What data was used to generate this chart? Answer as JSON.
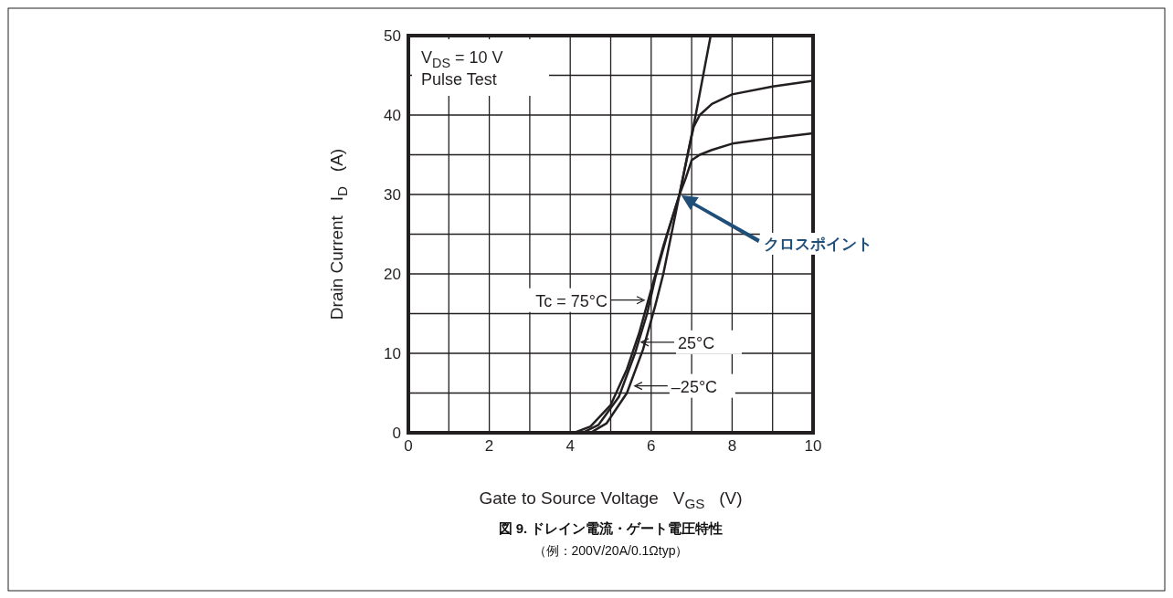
{
  "chart_data": {
    "type": "line",
    "title": "図 9. ドレイン電流・ゲート電圧特性",
    "subtitle": "（例：200V/20A/0.1Ωtyp）",
    "xlabel": "Gate to Source Voltage   V$_{GS}$   (V)",
    "ylabel": "Drain Current   I$_{D}$   (A)",
    "xlim": [
      0,
      10
    ],
    "ylim": [
      0,
      50
    ],
    "xticks": [
      0,
      {
        "value": 1,
        "label": null
      },
      2,
      {
        "value": 3,
        "label": null
      },
      4,
      {
        "value": 5,
        "label": null
      },
      6,
      {
        "value": 7,
        "label": null
      },
      8,
      {
        "value": 9,
        "label": null
      },
      10
    ],
    "yticks": [
      0,
      {
        "value": 5,
        "label": null
      },
      10,
      {
        "value": 15,
        "label": null
      },
      20,
      {
        "value": 25,
        "label": null
      },
      30,
      {
        "value": 35,
        "label": null
      },
      40,
      {
        "value": 45,
        "label": null
      },
      50
    ],
    "grid": true,
    "series": [
      {
        "color": "#231f20",
        "x": [
          4.1,
          4.5,
          5,
          5.4,
          5.7,
          6,
          6.3,
          6.7,
          6.85,
          7,
          7.2,
          7.5,
          8,
          9,
          10
        ],
        "values": [
          0,
          0.8,
          3.5,
          8,
          12.5,
          18,
          23.5,
          30,
          32,
          34.3,
          35,
          35.6,
          36.4,
          37.1,
          37.7
        ]
      },
      {
        "color": "#231f20",
        "x": [
          4.3,
          4.7,
          5.2,
          5.6,
          5.9,
          6.1,
          6.4,
          6.7,
          6.9,
          7.05,
          7.2,
          7.5,
          8,
          9,
          10
        ],
        "values": [
          0,
          1,
          4.5,
          10,
          15,
          19.5,
          25,
          30,
          35,
          38.5,
          40,
          41.4,
          42.6,
          43.6,
          44.3
        ]
      },
      {
        "color": "#231f20",
        "x": [
          4.5,
          4.9,
          5.4,
          5.8,
          6.1,
          6.3,
          6.5,
          6.7,
          7.1,
          7.47
        ],
        "values": [
          0,
          1.2,
          5,
          10.5,
          16,
          20,
          25,
          30,
          40,
          50
        ]
      }
    ],
    "annotations": [
      "V$_{DS}$ = 10 V",
      "Pulse Test",
      {
        "text": "Tc = 75°C",
        "x": 5.87,
        "y": 16.7
      },
      {
        "text": "25°C",
        "x": 5.71,
        "y": 11.4
      },
      {
        "text": "–25°C",
        "x": 5.55,
        "y": 5.9
      },
      "クロスポイント"
    ]
  }
}
